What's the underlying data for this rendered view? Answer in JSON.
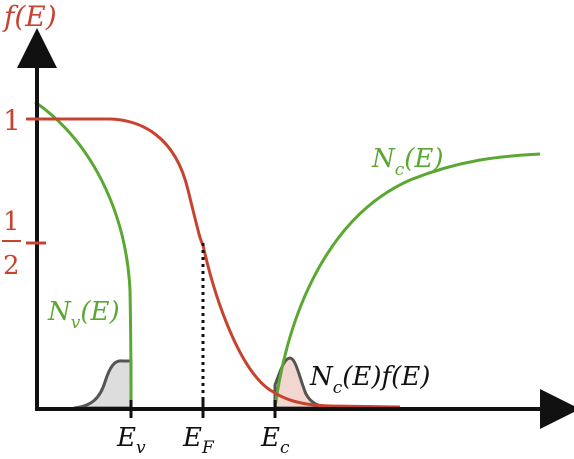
{
  "axes": {
    "y_label": "f(E)",
    "y_tick_one": "1",
    "y_tick_half_num": "1",
    "y_tick_half_den": "2"
  },
  "labels": {
    "Ev_main": "E",
    "Ev_sub": "v",
    "EF_main": "E",
    "EF_sub": "F",
    "Ec_main": "E",
    "Ec_sub": "c",
    "Nc_main": "N",
    "Nc_sub": "c",
    "Nc_rest": "(E)",
    "Nv_main": "N",
    "Nv_sub": "v",
    "Nv_rest": "(E)",
    "prod_main": "N",
    "prod_sub": "c",
    "prod_rest": "(E)f(E)"
  },
  "colors": {
    "fermi": "#c8432f",
    "dos": "#5aa832",
    "carriers": "#555555",
    "carrier_fill": "#dddddd",
    "axis": "#111111"
  }
}
